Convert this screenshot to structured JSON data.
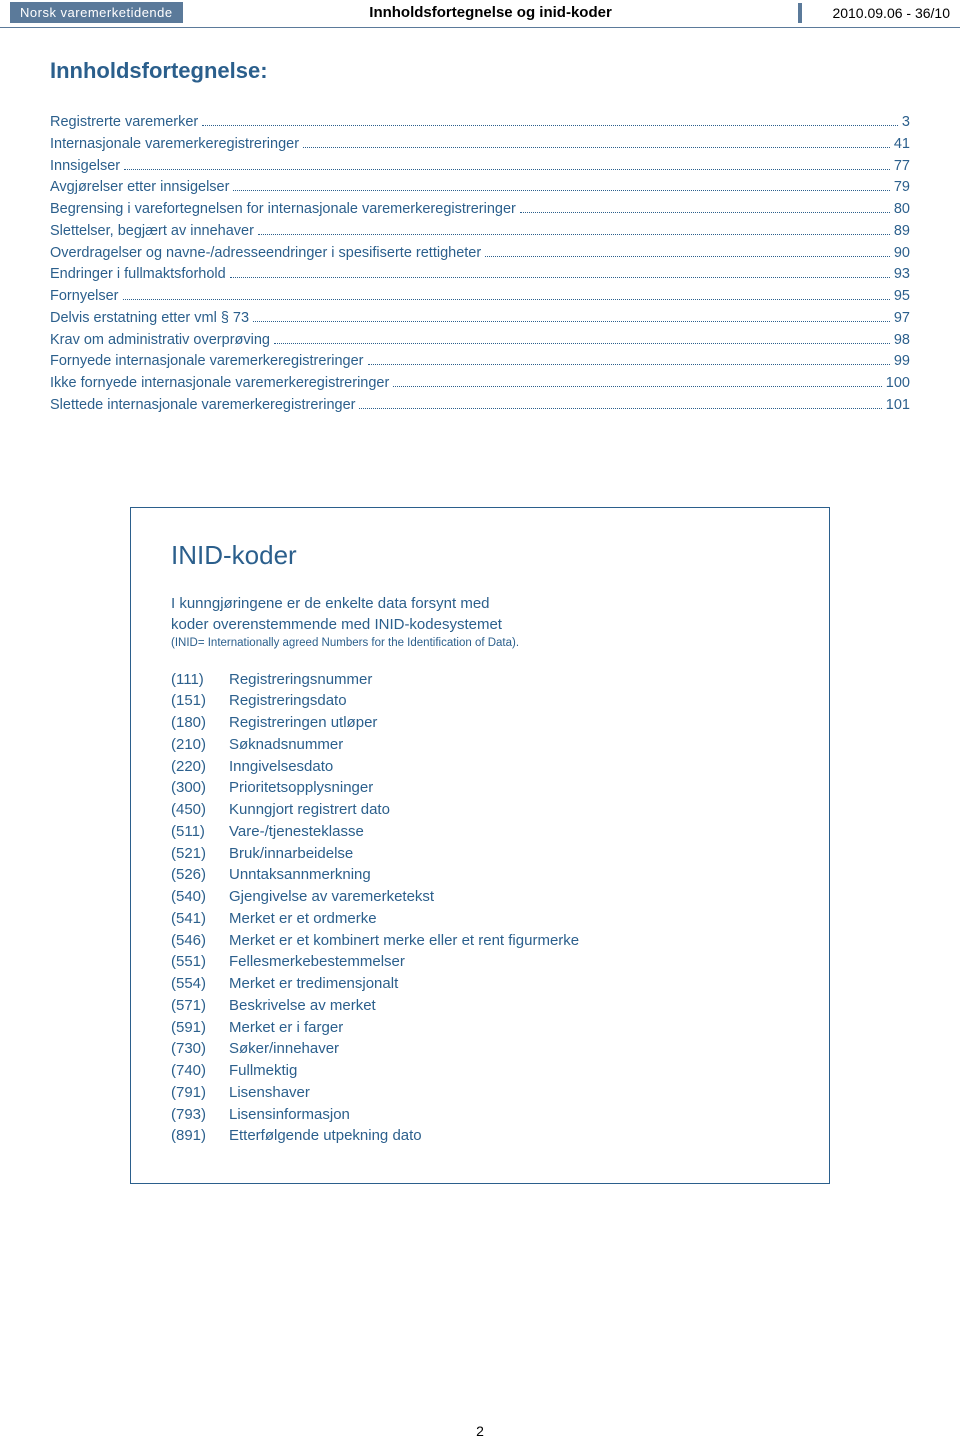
{
  "header": {
    "brand": "Norsk varemerketidende",
    "center_title": "Innholdsfortegnelse og inid-koder",
    "issue": "2010.09.06 - 36/10"
  },
  "title": "Innholdsfortegnelse:",
  "toc": [
    {
      "label": "Registrerte varemerker",
      "page": "3"
    },
    {
      "label": "Internasjonale varemerkeregistreringer",
      "page": "41"
    },
    {
      "label": "Innsigelser",
      "page": "77"
    },
    {
      "label": "Avgjørelser etter innsigelser",
      "page": "79"
    },
    {
      "label": "Begrensing i varefortegnelsen for internasjonale varemerkeregistreringer",
      "page": "80"
    },
    {
      "label": "Slettelser, begjært av innehaver",
      "page": "89"
    },
    {
      "label": "Overdragelser og navne-/adresseendringer i spesifiserte rettigheter",
      "page": "90"
    },
    {
      "label": "Endringer i fullmaktsforhold",
      "page": "93"
    },
    {
      "label": "Fornyelser",
      "page": "95"
    },
    {
      "label": "Delvis erstatning etter vml § 73",
      "page": "97"
    },
    {
      "label": "Krav om administrativ overprøving",
      "page": "98"
    },
    {
      "label": "Fornyede internasjonale varemerkeregistreringer",
      "page": "99"
    },
    {
      "label": "Ikke fornyede internasjonale varemerkeregistreringer",
      "page": "100"
    },
    {
      "label": "Slettede internasjonale varemerkeregistreringer",
      "page": "101"
    }
  ],
  "inid": {
    "title": "INID-koder",
    "intro_line1": "I kunngjøringene er de enkelte data forsynt med",
    "intro_line2": "koder overenstemmende med INID-kodesystemet",
    "intro_small": "(INID= Internationally agreed Numbers for the Identification of Data).",
    "codes": [
      {
        "code": "(111)",
        "desc": "Registreringsnummer"
      },
      {
        "code": "(151)",
        "desc": "Registreringsdato"
      },
      {
        "code": "(180)",
        "desc": "Registreringen utløper"
      },
      {
        "code": "(210)",
        "desc": "Søknadsnummer"
      },
      {
        "code": "(220)",
        "desc": "Inngivelsesdato"
      },
      {
        "code": "(300)",
        "desc": "Prioritetsopplysninger"
      },
      {
        "code": "(450)",
        "desc": "Kunngjort registrert dato"
      },
      {
        "code": "(511)",
        "desc": "Vare-/tjenesteklasse"
      },
      {
        "code": "(521)",
        "desc": "Bruk/innarbeidelse"
      },
      {
        "code": "(526)",
        "desc": " Unntaksannmerkning"
      },
      {
        "code": "(540)",
        "desc": "Gjengivelse av varemerketekst"
      },
      {
        "code": "(541)",
        "desc": "Merket er et ordmerke"
      },
      {
        "code": "(546)",
        "desc": "Merket er et kombinert merke eller et rent figurmerke"
      },
      {
        "code": "(551)",
        "desc": "Fellesmerkebestemmelser"
      },
      {
        "code": "(554)",
        "desc": "Merket er tredimensjonalt"
      },
      {
        "code": "(571)",
        "desc": "Beskrivelse av merket"
      },
      {
        "code": "(591)",
        "desc": "Merket er i farger"
      },
      {
        "code": "(730)",
        "desc": "Søker/innehaver"
      },
      {
        "code": "(740)",
        "desc": "Fullmektig"
      },
      {
        "code": "(791)",
        "desc": "Lisenshaver"
      },
      {
        "code": "(793)",
        "desc": "Lisensinformasjon"
      },
      {
        "code": "(891)",
        "desc": "Etterfølgende utpekning dato"
      }
    ]
  },
  "page_number": "2",
  "colors": {
    "primary": "#2b5f8c",
    "brand_bg": "#5b7a9a",
    "text_black": "#000000",
    "page_bg": "#ffffff"
  }
}
